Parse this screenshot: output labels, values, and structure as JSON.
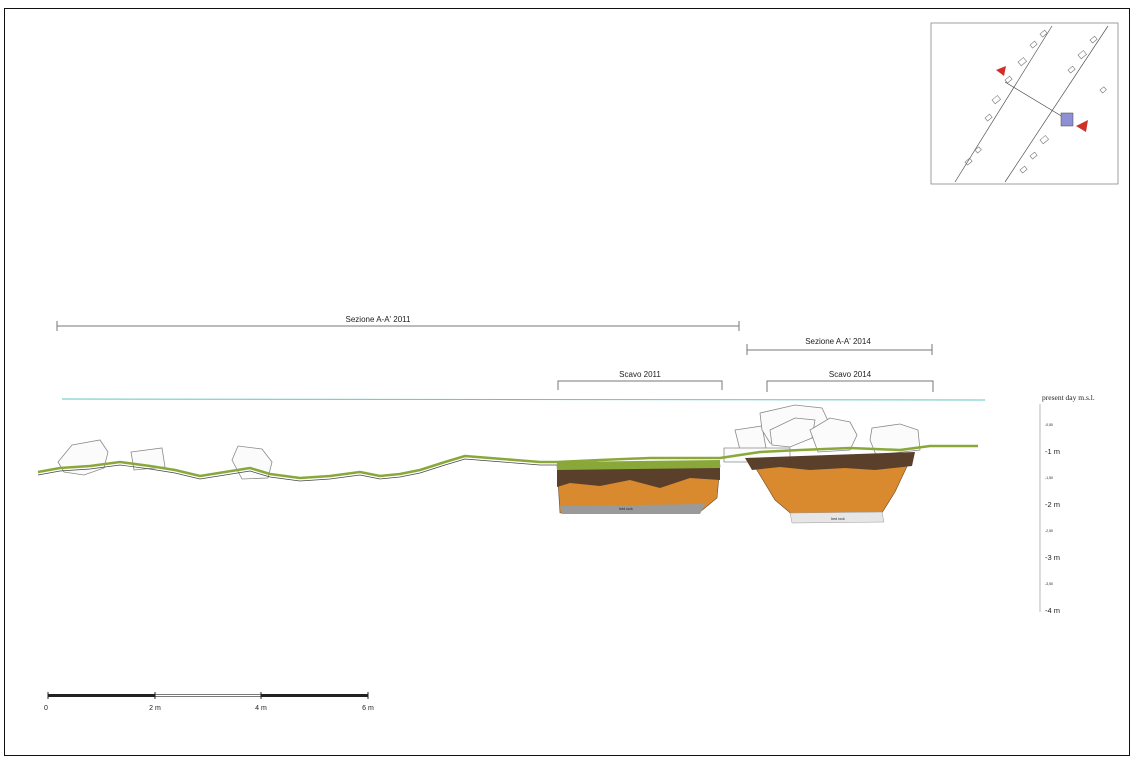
{
  "sections": {
    "sezione_2011": "Sezione A-A' 2011",
    "sezione_2014": "Sezione A-A' 2014",
    "scavo_2011": "Scavo 2011",
    "scavo_2014": "Scavo 2014"
  },
  "elevation_scale": {
    "heading": "present day  m.s.l.",
    "labels": [
      "-1 m",
      "-2 m",
      "-3 m",
      "-4 m"
    ],
    "minor_labels": [
      "-0,50",
      "-1,50",
      "-2,50",
      "-3,50"
    ]
  },
  "scale_bar": {
    "labels": [
      "0",
      "2 m",
      "4 m",
      "6 m"
    ]
  },
  "trench_notes": {
    "bedrock_2011": "bed rock",
    "bedrock_2014": "bed rock"
  },
  "colors": {
    "sea_level": "#5fc7c0",
    "vegetation": "#8aa83a",
    "topsoil": "#5a3f2a",
    "fill": "#d9892e",
    "bedrock": "#9a9a9a"
  }
}
